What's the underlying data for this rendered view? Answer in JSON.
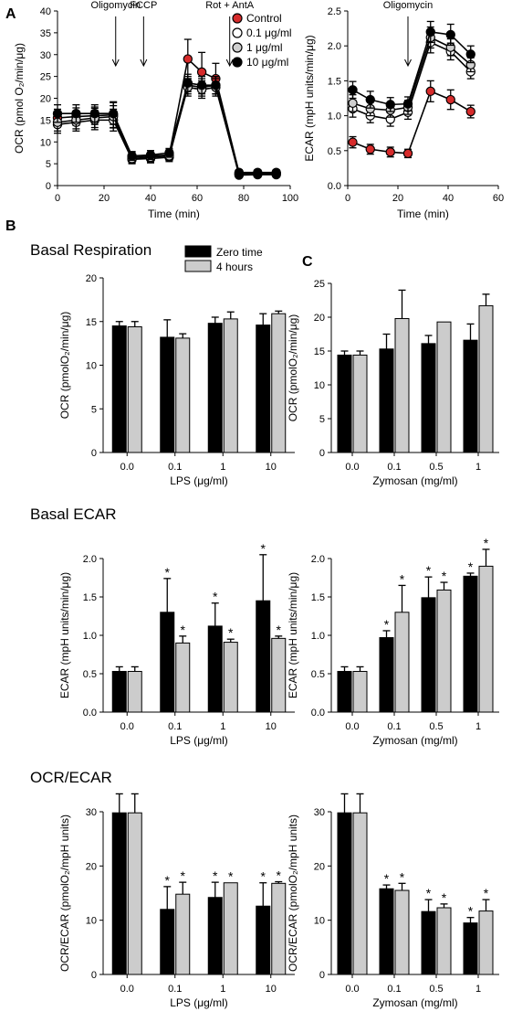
{
  "panel_labels": {
    "A": "A",
    "B": "B",
    "C": "C"
  },
  "row_titles": {
    "basal_respiration": "Basal Respiration",
    "basal_ecar": "Basal ECAR",
    "ocr_ecar": "OCR/ECAR"
  },
  "colors": {
    "black_bar": "#000000",
    "gray_bar": "#cccccc",
    "control_marker": "#d62b2b",
    "dose_0_1": "#ffffff",
    "dose_1": "#cfcfcf",
    "dose_10": "#000000"
  },
  "chart_data": [
    {
      "id": "A-left",
      "type": "line",
      "xlabel": "Time (min)",
      "ylabel": "OCR (pmol O₂/min/μg)",
      "xlim": [
        0,
        100
      ],
      "ylim": [
        0,
        40
      ],
      "xticks": [
        0,
        20,
        40,
        60,
        80,
        100
      ],
      "yticks": [
        0,
        5,
        10,
        15,
        20,
        25,
        30,
        35,
        40
      ],
      "legend_position": "top-right",
      "annotations": [
        {
          "label": "Oligomycin",
          "x": 25
        },
        {
          "label": "FCCP",
          "x": 37
        },
        {
          "label": "Rot + AntA",
          "x": 74
        }
      ],
      "x": [
        0,
        8,
        16,
        24,
        32,
        40,
        48,
        56,
        62,
        68,
        78,
        86,
        94
      ],
      "series": [
        {
          "name": "Control",
          "marker": "control",
          "values": [
            15.5,
            15.8,
            16.0,
            16.2,
            6.5,
            6.8,
            7.0,
            29.0,
            26.0,
            24.5,
            3.0,
            3.0,
            3.0
          ],
          "err": [
            2.0,
            2.0,
            2.0,
            3.0,
            1.2,
            1.2,
            1.2,
            4.5,
            4.5,
            3.5,
            0.6,
            0.6,
            0.6
          ]
        },
        {
          "name": "0.1 μg/ml",
          "marker": "open",
          "values": [
            14.0,
            14.5,
            15.0,
            15.0,
            6.0,
            6.2,
            6.5,
            23.0,
            22.5,
            23.0,
            2.4,
            2.5,
            2.5
          ],
          "err": [
            2.0,
            2.0,
            2.2,
            2.5,
            1.0,
            1.0,
            1.0,
            2.0,
            2.0,
            2.0,
            0.5,
            0.5,
            0.5
          ]
        },
        {
          "name": "1 μg/ml",
          "marker": "gray",
          "values": [
            14.5,
            15.0,
            15.5,
            15.8,
            6.2,
            6.5,
            6.8,
            22.5,
            22.0,
            22.5,
            2.6,
            2.7,
            2.7
          ],
          "err": [
            2.0,
            2.0,
            2.2,
            2.5,
            1.0,
            1.0,
            1.0,
            2.0,
            2.0,
            2.0,
            0.5,
            0.5,
            0.5
          ]
        },
        {
          "name": "10 μg/ml",
          "marker": "filled",
          "values": [
            16.5,
            16.5,
            16.5,
            16.5,
            6.8,
            7.0,
            7.5,
            23.5,
            23.0,
            23.0,
            2.8,
            2.9,
            2.9
          ],
          "err": [
            2.0,
            2.0,
            2.0,
            2.5,
            1.0,
            1.0,
            1.0,
            2.0,
            2.0,
            2.0,
            0.5,
            0.5,
            0.5
          ]
        }
      ]
    },
    {
      "id": "A-right",
      "type": "line",
      "xlabel": "Time (min)",
      "ylabel": "ECAR (mpH units/min/μg)",
      "xlim": [
        0,
        60
      ],
      "ylim": [
        0,
        2.5
      ],
      "xticks": [
        0,
        20,
        40,
        60
      ],
      "yticks": [
        0.0,
        0.5,
        1.0,
        1.5,
        2.0,
        2.5
      ],
      "annotations": [
        {
          "label": "Oligomycin",
          "x": 24
        }
      ],
      "x": [
        2,
        9,
        17,
        24,
        33,
        41,
        49
      ],
      "series": [
        {
          "name": "Control",
          "marker": "control",
          "values": [
            0.62,
            0.52,
            0.48,
            0.46,
            1.35,
            1.23,
            1.06
          ],
          "err": [
            0.08,
            0.07,
            0.07,
            0.06,
            0.15,
            0.14,
            0.09
          ]
        },
        {
          "name": "0.1 μg/ml",
          "marker": "open",
          "values": [
            1.1,
            1.0,
            0.95,
            1.05,
            2.05,
            1.92,
            1.63
          ],
          "err": [
            0.12,
            0.1,
            0.1,
            0.1,
            0.15,
            0.12,
            0.1
          ]
        },
        {
          "name": "1 μg/ml",
          "marker": "gray",
          "values": [
            1.18,
            1.1,
            1.08,
            1.12,
            2.12,
            1.98,
            1.73
          ],
          "err": [
            0.12,
            0.1,
            0.1,
            0.1,
            0.15,
            0.12,
            0.1
          ]
        },
        {
          "name": "10 μg/ml",
          "marker": "filled",
          "values": [
            1.37,
            1.23,
            1.16,
            1.17,
            2.2,
            2.16,
            1.88
          ],
          "err": [
            0.12,
            0.12,
            0.1,
            0.1,
            0.15,
            0.15,
            0.12
          ]
        }
      ]
    },
    {
      "id": "B-OCR",
      "type": "bar",
      "xlabel": "LPS  (μg/ml)",
      "ylabel": "OCR (pmolO₂/min/μg)",
      "categories": [
        "0.0",
        "0.1",
        "1",
        "10"
      ],
      "ylim": [
        0,
        20
      ],
      "yticks": [
        0,
        5,
        10,
        15,
        20
      ],
      "legend_position": "top-right",
      "series": [
        {
          "name": "Zero time",
          "color": "#000000",
          "values": [
            14.5,
            13.2,
            14.8,
            14.6
          ],
          "err": [
            0.5,
            2.0,
            0.7,
            1.3
          ],
          "stars": [
            false,
            false,
            false,
            false
          ]
        },
        {
          "name": "4 hours",
          "color": "#cccccc",
          "values": [
            14.4,
            13.1,
            15.3,
            15.9
          ],
          "err": [
            0.6,
            0.5,
            0.8,
            0.3
          ],
          "stars": [
            false,
            false,
            false,
            false
          ]
        }
      ]
    },
    {
      "id": "C-OCR",
      "type": "bar",
      "xlabel": "Zymosan (mg/ml)",
      "ylabel": "OCR (pmolO₂/min/μg)",
      "categories": [
        "0.0",
        "0.1",
        "0.5",
        "1"
      ],
      "ylim": [
        0,
        25
      ],
      "yticks": [
        0,
        5,
        10,
        15,
        20,
        25
      ],
      "series": [
        {
          "name": "Zero time",
          "color": "#000000",
          "values": [
            14.4,
            15.3,
            16.1,
            16.6
          ],
          "err": [
            0.6,
            2.2,
            1.2,
            2.4
          ],
          "stars": [
            false,
            false,
            false,
            false
          ]
        },
        {
          "name": "4 hours",
          "color": "#cccccc",
          "values": [
            14.4,
            19.8,
            19.3,
            21.7
          ],
          "err": [
            0.6,
            4.2,
            0.0,
            1.7
          ],
          "stars": [
            false,
            false,
            false,
            false
          ]
        }
      ]
    },
    {
      "id": "B-ECAR",
      "type": "bar",
      "xlabel": "LPS  (μg/ml)",
      "ylabel": "ECAR (mpH units/min/μg)",
      "categories": [
        "0.0",
        "0.1",
        "1",
        "10"
      ],
      "ylim": [
        0,
        2.0
      ],
      "yticks": [
        0.0,
        0.5,
        1.0,
        1.5,
        2.0
      ],
      "series": [
        {
          "name": "Zero time",
          "color": "#000000",
          "values": [
            0.53,
            1.3,
            1.12,
            1.45
          ],
          "err": [
            0.06,
            0.44,
            0.3,
            0.6
          ],
          "stars": [
            false,
            true,
            true,
            true
          ]
        },
        {
          "name": "4 hours",
          "color": "#cccccc",
          "values": [
            0.53,
            0.9,
            0.91,
            0.96
          ],
          "err": [
            0.06,
            0.09,
            0.04,
            0.03
          ],
          "stars": [
            false,
            true,
            true,
            true
          ]
        }
      ]
    },
    {
      "id": "C-ECAR",
      "type": "bar",
      "xlabel": "Zymosan (mg/ml)",
      "ylabel": "ECAR (mpH units/min/μg)",
      "categories": [
        "0.0",
        "0.1",
        "0.5",
        "1"
      ],
      "ylim": [
        0,
        2.0
      ],
      "yticks": [
        0.0,
        0.5,
        1.0,
        1.5,
        2.0
      ],
      "series": [
        {
          "name": "Zero time",
          "color": "#000000",
          "values": [
            0.53,
            0.97,
            1.49,
            1.77
          ],
          "err": [
            0.06,
            0.09,
            0.27,
            0.04
          ],
          "stars": [
            false,
            true,
            true,
            true
          ]
        },
        {
          "name": "4 hours",
          "color": "#cccccc",
          "values": [
            0.53,
            1.3,
            1.59,
            1.9
          ],
          "err": [
            0.06,
            0.35,
            0.1,
            0.22
          ],
          "stars": [
            false,
            true,
            true,
            true
          ]
        }
      ]
    },
    {
      "id": "B-ratio",
      "type": "bar",
      "xlabel": "LPS  (μg/ml)",
      "ylabel": "OCR/ECAR (pmolO₂/mpH units)",
      "categories": [
        "0.0",
        "0.1",
        "1",
        "10"
      ],
      "ylim": [
        0,
        30
      ],
      "yticks": [
        0,
        10,
        20,
        30
      ],
      "series": [
        {
          "name": "Zero time",
          "color": "#000000",
          "values": [
            29.8,
            12.0,
            14.2,
            12.6
          ],
          "err": [
            3.5,
            4.2,
            2.8,
            4.3
          ],
          "stars": [
            false,
            true,
            true,
            true
          ]
        },
        {
          "name": "4 hours",
          "color": "#cccccc",
          "values": [
            29.8,
            14.8,
            16.9,
            16.8
          ],
          "err": [
            3.5,
            2.2,
            0.0,
            0.3
          ],
          "stars": [
            false,
            true,
            true,
            true
          ]
        }
      ]
    },
    {
      "id": "C-ratio",
      "type": "bar",
      "xlabel": "Zymosan (mg/ml)",
      "ylabel": "OCR/ECAR (pmolO₂/mpH units)",
      "categories": [
        "0.0",
        "0.1",
        "0.5",
        "1"
      ],
      "ylim": [
        0,
        30
      ],
      "yticks": [
        0,
        10,
        20,
        30
      ],
      "series": [
        {
          "name": "Zero time",
          "color": "#000000",
          "values": [
            29.8,
            15.8,
            11.6,
            9.5
          ],
          "err": [
            3.5,
            0.7,
            2.2,
            1.0
          ],
          "stars": [
            false,
            true,
            true,
            true
          ]
        },
        {
          "name": "4 hours",
          "color": "#cccccc",
          "values": [
            29.8,
            15.5,
            12.3,
            11.7
          ],
          "err": [
            3.5,
            1.3,
            0.7,
            2.1
          ],
          "stars": [
            false,
            true,
            true,
            true
          ]
        }
      ]
    }
  ]
}
